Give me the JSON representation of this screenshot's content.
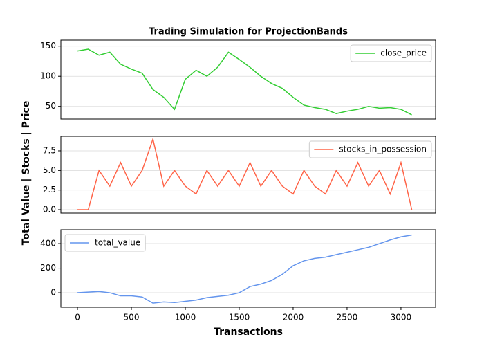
{
  "chart_data": [
    {
      "type": "line",
      "title": "Trading Simulation for ProjectionBands",
      "x": [
        0,
        100,
        200,
        300,
        400,
        500,
        600,
        700,
        800,
        900,
        1000,
        1100,
        1200,
        1300,
        1400,
        1500,
        1600,
        1700,
        1800,
        1900,
        2000,
        2100,
        2200,
        2300,
        2400,
        2500,
        2600,
        2700,
        2800,
        2900,
        3000,
        3100
      ],
      "series": [
        {
          "name": "close_price",
          "color": "#32cd32",
          "values": [
            142,
            145,
            135,
            140,
            120,
            112,
            105,
            78,
            65,
            45,
            95,
            110,
            100,
            115,
            140,
            128,
            115,
            100,
            88,
            80,
            65,
            52,
            48,
            45,
            38,
            42,
            45,
            50,
            47,
            48,
            45,
            36
          ]
        }
      ],
      "xlim": [
        -154,
        3321
      ],
      "ylim": [
        29,
        160
      ],
      "yticks": [
        50,
        100,
        150
      ],
      "grid": true,
      "legend": "upper-right"
    },
    {
      "type": "line",
      "ylabel": "Total Value | Stocks | Price",
      "x": [
        0,
        100,
        200,
        300,
        400,
        500,
        600,
        700,
        800,
        900,
        1000,
        1100,
        1200,
        1300,
        1400,
        1500,
        1600,
        1700,
        1800,
        1900,
        2000,
        2100,
        2200,
        2300,
        2400,
        2500,
        2600,
        2700,
        2800,
        2900,
        3000,
        3100
      ],
      "series": [
        {
          "name": "stocks_in_possession",
          "color": "#ff6347",
          "values": [
            0,
            0,
            5,
            3,
            6,
            3,
            5,
            9,
            3,
            5,
            3,
            2,
            5,
            3,
            5,
            3,
            6,
            3,
            5,
            3,
            2,
            5,
            3,
            2,
            5,
            3,
            6,
            3,
            5,
            2,
            6,
            0
          ]
        }
      ],
      "xlim": [
        -154,
        3321
      ],
      "ylim": [
        -0.44,
        9.35
      ],
      "yticks": [
        {
          "value": 0,
          "label": "0.0"
        },
        2.5,
        {
          "value": 5,
          "label": "5.0"
        },
        7.5
      ],
      "grid": true,
      "legend": "upper-right"
    },
    {
      "type": "line",
      "xlabel": "Transactions",
      "x": [
        0,
        100,
        200,
        300,
        400,
        500,
        600,
        700,
        800,
        900,
        1000,
        1100,
        1200,
        1300,
        1400,
        1500,
        1600,
        1700,
        1800,
        1900,
        2000,
        2100,
        2200,
        2300,
        2400,
        2500,
        2600,
        2700,
        2800,
        2900,
        3000,
        3100
      ],
      "series": [
        {
          "name": "total_value",
          "color": "#6495ed",
          "values": [
            0,
            5,
            10,
            0,
            -25,
            -25,
            -35,
            -85,
            -75,
            -80,
            -70,
            -60,
            -40,
            -30,
            -20,
            0,
            50,
            70,
            100,
            150,
            220,
            260,
            280,
            290,
            310,
            330,
            350,
            370,
            400,
            430,
            455,
            470
          ]
        }
      ],
      "xlim": [
        -154,
        3321
      ],
      "ylim": [
        -118,
        513
      ],
      "yticks": [
        0,
        200,
        400
      ],
      "xticks": [
        0,
        500,
        1000,
        1500,
        2000,
        2500,
        3000
      ],
      "grid": true,
      "legend": "upper-left"
    }
  ]
}
